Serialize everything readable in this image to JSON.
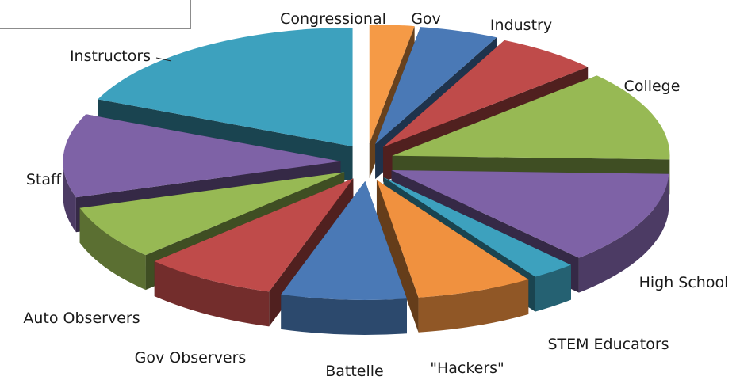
{
  "chart_data": {
    "type": "pie",
    "style": "3d-exploded",
    "title": "",
    "legend": "none",
    "slices": [
      {
        "label": "Congressional",
        "value": 2.6,
        "color": "#F59A46"
      },
      {
        "label": "Gov",
        "value": 4.6,
        "color": "#4A79B6"
      },
      {
        "label": "Industry",
        "value": 6.0,
        "color": "#BF4B4A"
      },
      {
        "label": "College",
        "value": 12.3,
        "color": "#97B954"
      },
      {
        "label": "High School",
        "value": 12.7,
        "color": "#7E62A6"
      },
      {
        "label": "STEM Educators",
        "value": 2.6,
        "color": "#3DA1BE"
      },
      {
        "label": "\"Hackers\"",
        "value": 6.8,
        "color": "#F0913F"
      },
      {
        "label": "Battelle",
        "value": 7.3,
        "color": "#4A79B6"
      },
      {
        "label": "Gov Observers",
        "value": 7.8,
        "color": "#BF4B4A"
      },
      {
        "label": "Auto Observers",
        "value": 7.4,
        "color": "#97B954"
      },
      {
        "label": "Staff",
        "value": 11.4,
        "color": "#7E62A6"
      },
      {
        "label": "Instructors",
        "value": 18.5,
        "color": "#3DA1BE"
      }
    ]
  }
}
